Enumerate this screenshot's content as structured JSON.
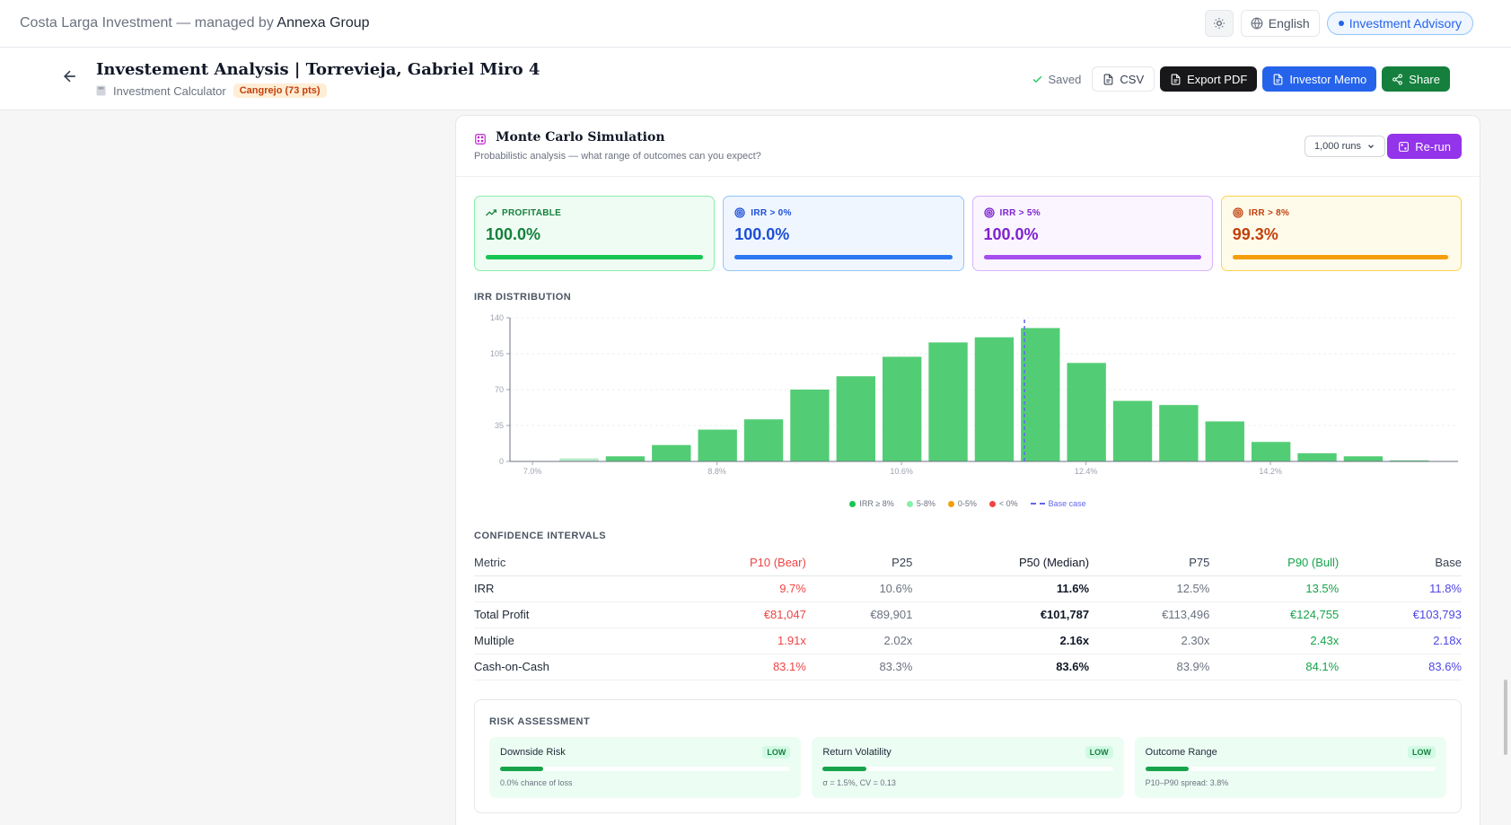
{
  "topbar": {
    "brand_prefix": "Costa Larga Investment — managed by",
    "brand_name": "Annexa Group",
    "language": "English",
    "advisory": "Investment Advisory"
  },
  "header": {
    "title": "Investement Analysis | Torrevieja, Gabriel Miro 4",
    "calculator_label": "Investment Calculator",
    "score_badge": "Cangrejo (73 pts)",
    "saved_label": "Saved",
    "csv_label": "CSV",
    "export_pdf_label": "Export PDF",
    "investor_memo_label": "Investor Memo",
    "share_label": "Share"
  },
  "simulation": {
    "title": "Monte Carlo Simulation",
    "subtitle": "Probabilistic analysis — what range of outcomes can you expect?",
    "runs_selected": "1,000 runs",
    "rerun_label": "Re-run"
  },
  "stats": [
    {
      "label": "PROFITABLE",
      "value": "100.0%",
      "fraction": 1.0,
      "icon": "trending-up-icon",
      "bg": "#effcf3",
      "border": "#86efac",
      "color": "#15803d",
      "bar": "#16c552",
      "track": "#d1fae5"
    },
    {
      "label": "IRR > 0%",
      "value": "100.0%",
      "fraction": 1.0,
      "icon": "target-icon",
      "bg": "#eff6ff",
      "border": "#93c5fd",
      "color": "#1d4ed8",
      "bar": "#2b78f0",
      "track": "#dbeafe"
    },
    {
      "label": "IRR > 5%",
      "value": "100.0%",
      "fraction": 1.0,
      "icon": "target-icon",
      "bg": "#faf5ff",
      "border": "#d8b4fe",
      "color": "#7e22ce",
      "bar": "#a64df0",
      "track": "#f3e8ff"
    },
    {
      "label": "IRR > 8%",
      "value": "99.3%",
      "fraction": 0.993,
      "icon": "target-icon",
      "bg": "#fffbeb",
      "border": "#fcd34d",
      "color": "#c2410c",
      "bar": "#f59e0b",
      "track": "#fef3c7"
    }
  ],
  "irr_section_title": "IRR DISTRIBUTION",
  "chart_data": {
    "type": "bar",
    "xlabel": "",
    "ylabel": "",
    "ylim": [
      0,
      140
    ],
    "yticks": [
      0,
      35,
      70,
      105,
      140
    ],
    "xticks": [
      "7.0%",
      "8.8%",
      "10.6%",
      "12.4%",
      "14.2%"
    ],
    "xtick_positions": [
      7.0,
      8.8,
      10.6,
      12.4,
      14.2
    ],
    "xlim": [
      6.78,
      16.03
    ],
    "bin_width": 0.45,
    "bin_start": 6.78,
    "values": [
      0,
      3,
      5,
      16,
      31,
      41,
      70,
      83,
      102,
      116,
      121,
      130,
      96,
      59,
      55,
      39,
      19,
      8,
      5,
      1
    ],
    "base_case": 11.8,
    "grid": true,
    "colors": {
      "ge8": "#53cd75",
      "b5_8": "#b7ebc7"
    },
    "legend": [
      {
        "label": "IRR ≥ 8%",
        "color": "#16c552"
      },
      {
        "label": "5-8%",
        "color": "#86efac"
      },
      {
        "label": "0-5%",
        "color": "#f59e0b"
      },
      {
        "label": "< 0%",
        "color": "#ef4444"
      },
      {
        "label": "Base case",
        "color": "#6366f1",
        "dashed": true
      }
    ]
  },
  "ci": {
    "title": "CONFIDENCE INTERVALS",
    "headers": [
      "Metric",
      "P10 (Bear)",
      "P25",
      "P50 (Median)",
      "P75",
      "P90 (Bull)",
      "Base"
    ],
    "rows": [
      [
        "IRR",
        "9.7%",
        "10.6%",
        "11.6%",
        "12.5%",
        "13.5%",
        "11.8%"
      ],
      [
        "Total Profit",
        "€81,047",
        "€89,901",
        "€101,787",
        "€113,496",
        "€124,755",
        "€103,793"
      ],
      [
        "Multiple",
        "1.91x",
        "2.02x",
        "2.16x",
        "2.30x",
        "2.43x",
        "2.18x"
      ],
      [
        "Cash-on-Cash",
        "83.1%",
        "83.3%",
        "83.6%",
        "83.9%",
        "84.1%",
        "83.6%"
      ]
    ]
  },
  "risk": {
    "title": "RISK ASSESSMENT",
    "cards": [
      {
        "name": "Downside Risk",
        "badge": "LOW",
        "note": "0.0% chance of loss",
        "fraction": 0.15
      },
      {
        "name": "Return Volatility",
        "badge": "LOW",
        "note": "σ = 1.5%, CV = 0.13",
        "fraction": 0.15
      },
      {
        "name": "Outcome Range",
        "badge": "LOW",
        "note": "P10–P90 spread: 3.8%",
        "fraction": 0.15
      }
    ]
  }
}
